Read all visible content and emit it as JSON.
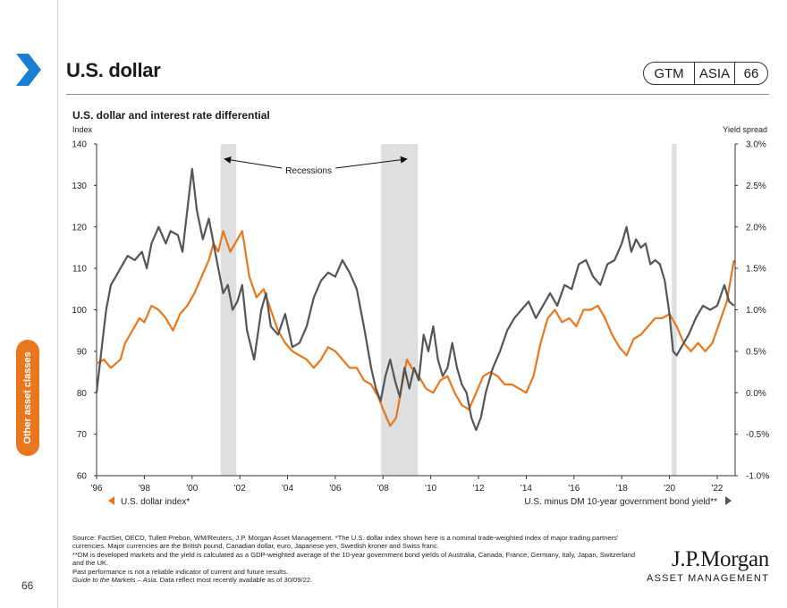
{
  "header": {
    "title": "U.S. dollar",
    "badge": {
      "gtm": "GTM",
      "region": "ASIA",
      "number": "66"
    }
  },
  "sidebar": {
    "section_label": "Other asset classes",
    "page_number": "66"
  },
  "colors": {
    "accent": "#e8771e",
    "usd_series": "#e8771e",
    "yield_series": "#555555",
    "recession": "#dedfe1"
  },
  "chart_data": {
    "type": "line",
    "title": "U.S. dollar and interest rate differential",
    "ylabel_left": "Index",
    "ylabel_right": "Yield spread",
    "x_range": [
      1996,
      2022.75
    ],
    "ylim_left": [
      60,
      140
    ],
    "ylim_right": [
      -1.0,
      3.0
    ],
    "x_ticks": [
      {
        "v": 1996,
        "label": "'96"
      },
      {
        "v": 1998,
        "label": "'98"
      },
      {
        "v": 2000,
        "label": "'00"
      },
      {
        "v": 2002,
        "label": "'02"
      },
      {
        "v": 2004,
        "label": "'04"
      },
      {
        "v": 2006,
        "label": "'06"
      },
      {
        "v": 2008,
        "label": "'08"
      },
      {
        "v": 2010,
        "label": "'10"
      },
      {
        "v": 2012,
        "label": "'12"
      },
      {
        "v": 2014,
        "label": "'14"
      },
      {
        "v": 2016,
        "label": "'16"
      },
      {
        "v": 2018,
        "label": "'18"
      },
      {
        "v": 2020,
        "label": "'20"
      },
      {
        "v": 2022,
        "label": "'22"
      }
    ],
    "y_ticks_left": [
      {
        "v": 140,
        "label": "140"
      },
      {
        "v": 130,
        "label": "130"
      },
      {
        "v": 120,
        "label": "120"
      },
      {
        "v": 110,
        "label": "110"
      },
      {
        "v": 100,
        "label": "100"
      },
      {
        "v": 90,
        "label": "90"
      },
      {
        "v": 80,
        "label": "80"
      },
      {
        "v": 70,
        "label": "70"
      },
      {
        "v": 60,
        "label": "60"
      }
    ],
    "y_ticks_right": [
      {
        "v": 3.0,
        "label": "3.0%"
      },
      {
        "v": 2.5,
        "label": "2.5%"
      },
      {
        "v": 2.0,
        "label": "2.0%"
      },
      {
        "v": 1.5,
        "label": "1.5%"
      },
      {
        "v": 1.0,
        "label": "1.0%"
      },
      {
        "v": 0.5,
        "label": "0.5%"
      },
      {
        "v": 0.0,
        "label": "0.0%"
      },
      {
        "v": -0.5,
        "label": "-0.5%"
      },
      {
        "v": -1.0,
        "label": "-1.0%"
      }
    ],
    "recessions": [
      {
        "start": 2001.2,
        "end": 2001.85
      },
      {
        "start": 2007.92,
        "end": 2009.46
      },
      {
        "start": 2020.1,
        "end": 2020.3
      }
    ],
    "annotation": "Recessions",
    "series": [
      {
        "name": "U.S. dollar index*",
        "axis": "left",
        "color": "#e8771e",
        "x": [
          1996.0,
          1996.3,
          1996.6,
          1997.0,
          1997.2,
          1997.5,
          1997.8,
          1998.0,
          1998.3,
          1998.6,
          1998.9,
          1999.2,
          1999.5,
          1999.8,
          2000.1,
          2000.4,
          2000.7,
          2000.9,
          2001.1,
          2001.3,
          2001.6,
          2001.9,
          2002.1,
          2002.4,
          2002.7,
          2003.0,
          2003.3,
          2003.6,
          2003.9,
          2004.2,
          2004.5,
          2004.8,
          2005.1,
          2005.4,
          2005.7,
          2006.0,
          2006.3,
          2006.6,
          2006.9,
          2007.2,
          2007.5,
          2007.8,
          2008.0,
          2008.3,
          2008.55,
          2008.8,
          2009.0,
          2009.2,
          2009.5,
          2009.8,
          2010.1,
          2010.4,
          2010.7,
          2011.0,
          2011.3,
          2011.6,
          2011.9,
          2012.2,
          2012.5,
          2012.8,
          2013.1,
          2013.4,
          2013.7,
          2014.0,
          2014.3,
          2014.6,
          2014.9,
          2015.2,
          2015.5,
          2015.8,
          2016.1,
          2016.4,
          2016.7,
          2017.0,
          2017.3,
          2017.6,
          2017.9,
          2018.2,
          2018.5,
          2018.8,
          2019.1,
          2019.4,
          2019.7,
          2020.0,
          2020.3,
          2020.6,
          2020.9,
          2021.2,
          2021.5,
          2021.8,
          2022.1,
          2022.4,
          2022.7
        ],
        "values": [
          87,
          88,
          86,
          88,
          92,
          95,
          98,
          97,
          101,
          100,
          98,
          95,
          99,
          101,
          104,
          108,
          112,
          116,
          114,
          119,
          114,
          117,
          119,
          108,
          103,
          105,
          100,
          95,
          92,
          90,
          89,
          88,
          86,
          88,
          91,
          90,
          88,
          86,
          86,
          83,
          82,
          79,
          76,
          72,
          74,
          82,
          88,
          86,
          84,
          81,
          80,
          83,
          84,
          80,
          77,
          76,
          80,
          84,
          85,
          84,
          82,
          82,
          81,
          80,
          84,
          92,
          98,
          100,
          97,
          98,
          96,
          100,
          100,
          101,
          98,
          94,
          91,
          89,
          93,
          94,
          96,
          98,
          98,
          99,
          96,
          92,
          90,
          92,
          90,
          92,
          97,
          102,
          112
        ]
      },
      {
        "name": "U.S. minus DM 10-year government bond yield**",
        "axis": "right",
        "color": "#555555",
        "x": [
          1996.0,
          1996.2,
          1996.4,
          1996.6,
          1996.8,
          1997.0,
          1997.3,
          1997.6,
          1997.9,
          1998.1,
          1998.3,
          1998.6,
          1998.9,
          1999.1,
          1999.4,
          1999.6,
          1999.8,
          2000.0,
          2000.2,
          2000.45,
          2000.7,
          2000.9,
          2001.1,
          2001.3,
          2001.5,
          2001.7,
          2001.9,
          2002.1,
          2002.3,
          2002.6,
          2002.9,
          2003.1,
          2003.3,
          2003.6,
          2003.9,
          2004.2,
          2004.5,
          2004.8,
          2005.1,
          2005.4,
          2005.7,
          2006.0,
          2006.3,
          2006.6,
          2006.9,
          2007.2,
          2007.5,
          2007.7,
          2007.9,
          2008.1,
          2008.3,
          2008.5,
          2008.7,
          2008.9,
          2009.1,
          2009.3,
          2009.5,
          2009.7,
          2009.9,
          2010.1,
          2010.3,
          2010.5,
          2010.7,
          2010.9,
          2011.1,
          2011.3,
          2011.5,
          2011.7,
          2011.9,
          2012.1,
          2012.3,
          2012.6,
          2012.9,
          2013.2,
          2013.5,
          2013.8,
          2014.1,
          2014.4,
          2014.7,
          2015.0,
          2015.3,
          2015.6,
          2015.9,
          2016.2,
          2016.5,
          2016.8,
          2017.1,
          2017.4,
          2017.7,
          2018.0,
          2018.2,
          2018.4,
          2018.6,
          2018.8,
          2019.0,
          2019.2,
          2019.4,
          2019.6,
          2019.8,
          2020.0,
          2020.15,
          2020.3,
          2020.5,
          2020.8,
          2021.1,
          2021.4,
          2021.7,
          2022.0,
          2022.3,
          2022.5,
          2022.7
        ],
        "values": [
          0.0,
          0.5,
          1.0,
          1.3,
          1.4,
          1.5,
          1.65,
          1.6,
          1.7,
          1.5,
          1.8,
          2.0,
          1.8,
          1.95,
          1.9,
          1.7,
          2.2,
          2.7,
          2.2,
          1.85,
          2.1,
          1.8,
          1.5,
          1.2,
          1.3,
          1.0,
          1.1,
          1.3,
          0.75,
          0.4,
          1.0,
          1.2,
          0.8,
          0.7,
          0.95,
          0.55,
          0.6,
          0.8,
          1.15,
          1.35,
          1.45,
          1.4,
          1.6,
          1.45,
          1.25,
          0.8,
          0.3,
          0.05,
          -0.1,
          0.2,
          0.4,
          0.15,
          -0.05,
          0.3,
          0.05,
          0.3,
          0.15,
          0.7,
          0.5,
          0.8,
          0.4,
          0.2,
          0.3,
          0.6,
          0.3,
          0.1,
          0.0,
          -0.3,
          -0.45,
          -0.3,
          0.0,
          0.3,
          0.5,
          0.75,
          0.9,
          1.0,
          1.1,
          0.9,
          1.05,
          1.2,
          1.05,
          1.3,
          1.25,
          1.55,
          1.6,
          1.4,
          1.3,
          1.55,
          1.6,
          1.8,
          2.0,
          1.7,
          1.85,
          1.75,
          1.8,
          1.55,
          1.6,
          1.55,
          1.35,
          0.95,
          0.5,
          0.45,
          0.55,
          0.7,
          0.9,
          1.05,
          1.0,
          1.05,
          1.3,
          1.1,
          1.05
        ]
      }
    ],
    "legend": [
      {
        "label": "U.S. dollar index*",
        "position": "bottom-left",
        "axis": "left"
      },
      {
        "label": "U.S. minus DM 10-year government bond yield**",
        "position": "bottom-right",
        "axis": "right"
      }
    ]
  },
  "footnotes": {
    "source": "Source: FactSet, OECD, Tullett Prebon, WM/Reuters, J.P. Morgan Asset Management. *The U.S. dollar index shown here is a nominal trade-weighted index of major trading partners' currencies. Major currencies are the British pound, Canadian dollar, euro, Japanese yen, Swedish kroner and Swiss franc.",
    "note_dm": "**DM is developed markets and the yield is calculated as a GDP-weighted average of the 10-year government bond yields of Australia, Canada, France, Germany, Italy, Japan, Switzerland and the UK.",
    "disclaimer": "Past performance is not a reliable indicator of current and future results.",
    "guide_title": "Guide to the Markets – Asia.",
    "guide_note": " Data reflect most recently available as of 30/09/22."
  },
  "logo": {
    "line1": "J.P.Morgan",
    "line2": "ASSET MANAGEMENT"
  }
}
